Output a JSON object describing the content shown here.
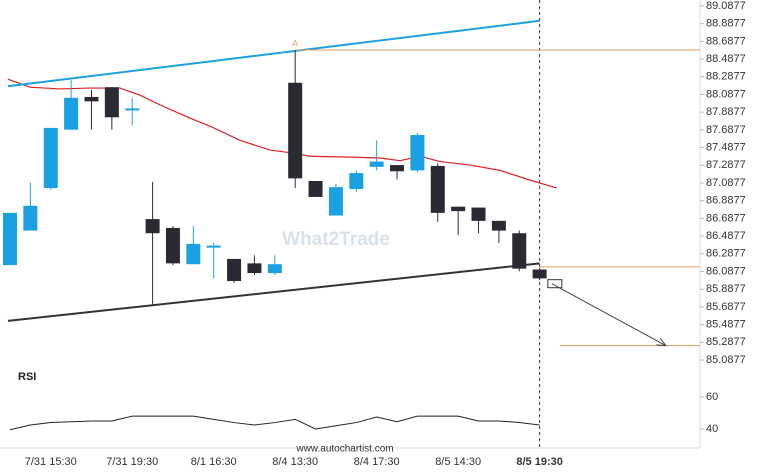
{
  "chart_data": {
    "type": "candlestick",
    "categories": [
      null,
      null,
      "7/31 15:30",
      null,
      null,
      null,
      "7/31 19:30",
      null,
      null,
      null,
      "8/1 16:30",
      null,
      null,
      null,
      "8/4 13:30",
      null,
      null,
      null,
      "8/4 17:30",
      null,
      null,
      null,
      "8/5 14:30",
      null,
      null,
      null,
      "8/5 19:30"
    ],
    "open": [
      86.16,
      86.55,
      87.03,
      87.69,
      88.06,
      88.17,
      87.92,
      86.68,
      86.58,
      86.17,
      86.37,
      86.23,
      86.18,
      86.07,
      88.22,
      87.11,
      86.72,
      87.02,
      87.27,
      87.29,
      87.23,
      87.28,
      86.82,
      86.81,
      86.66,
      86.52,
      86.11
    ],
    "high": [
      86.75,
      87.09,
      87.71,
      88.25,
      88.14,
      88.17,
      88.05,
      87.1,
      86.6,
      86.6,
      86.41,
      86.23,
      86.27,
      86.27,
      88.59,
      87.11,
      87.08,
      87.23,
      87.57,
      87.29,
      87.65,
      87.31,
      86.82,
      86.81,
      86.66,
      86.55,
      86.13
    ],
    "low": [
      86.16,
      86.55,
      87.01,
      87.69,
      87.69,
      87.69,
      87.74,
      85.71,
      86.16,
      86.17,
      86.01,
      85.96,
      86.05,
      86.05,
      87.03,
      86.93,
      86.72,
      86.99,
      87.23,
      87.13,
      87.21,
      86.65,
      86.5,
      86.52,
      86.41,
      86.09,
      85.99
    ],
    "close": [
      86.75,
      86.83,
      87.71,
      88.05,
      88.01,
      87.83,
      87.93,
      86.52,
      86.18,
      86.4,
      86.38,
      85.98,
      86.07,
      86.17,
      87.14,
      86.93,
      87.04,
      87.2,
      87.33,
      87.22,
      87.63,
      86.75,
      86.77,
      86.66,
      86.55,
      86.12,
      86.01
    ],
    "up_color": "#1ba1e2",
    "down_color": "#2a2a33",
    "ylim": [
      84.975,
      89.155
    ],
    "yticks": [
      89.0877,
      88.8877,
      88.6877,
      88.4877,
      88.2877,
      88.0877,
      87.8877,
      87.6877,
      87.4877,
      87.2877,
      87.0877,
      86.8877,
      86.6877,
      86.4877,
      86.2877,
      86.0877,
      85.8877,
      85.6877,
      85.4877,
      85.2877,
      85.0877
    ],
    "upper_trendline": {
      "x": [
        -0.1,
        26
      ],
      "values": [
        88.18,
        88.92
      ],
      "color": "#1ba1e2"
    },
    "lower_trendline": {
      "x": [
        -0.1,
        26
      ],
      "values": [
        85.53,
        86.18
      ],
      "color": "#333333"
    },
    "moving_average": {
      "x": [
        -0.1,
        0.98,
        2.45,
        3.93,
        5.4,
        6.38,
        7.36,
        8.84,
        9.82,
        11.29,
        12.76,
        13.75,
        14.73,
        16.69,
        18.16,
        19.15,
        20.13,
        21.11,
        22.58,
        24.06,
        25.53,
        26.85
      ],
      "values": [
        88.26,
        88.17,
        88.15,
        88.16,
        88.16,
        88.08,
        87.97,
        87.82,
        87.73,
        87.57,
        87.46,
        87.43,
        87.39,
        87.38,
        87.37,
        87.34,
        87.39,
        87.33,
        87.29,
        87.23,
        87.12,
        87.03
      ],
      "color": "#e02020"
    },
    "levels": [
      {
        "value": 88.59,
        "x_from": 14,
        "color": "#e0a060"
      },
      {
        "value": 86.14,
        "x_from": 26,
        "color": "#e0a060"
      },
      {
        "value": 85.25,
        "x_from": 27,
        "color": "#e0a060"
      }
    ],
    "forecast_arrow": {
      "x": [
        26.6,
        32.2
      ],
      "values": [
        85.95,
        85.25
      ],
      "color": "#444444"
    },
    "pattern_label": {
      "text": "A",
      "x": 14,
      "color": "#e0a060"
    },
    "watermark": "What2Trade",
    "footer": "www.autochartist.com",
    "rsi": {
      "label": "RSI",
      "values": [
        39.5,
        42.5,
        44,
        44.5,
        45,
        45,
        48,
        48,
        48,
        48,
        46,
        44,
        42.5,
        44,
        46,
        40,
        42,
        44,
        47.5,
        44.5,
        48,
        48,
        48,
        45,
        45,
        44,
        42.5
      ],
      "ylim": [
        30.6,
        68.1
      ],
      "yticks": [
        60,
        40
      ],
      "color": "#222222"
    }
  }
}
